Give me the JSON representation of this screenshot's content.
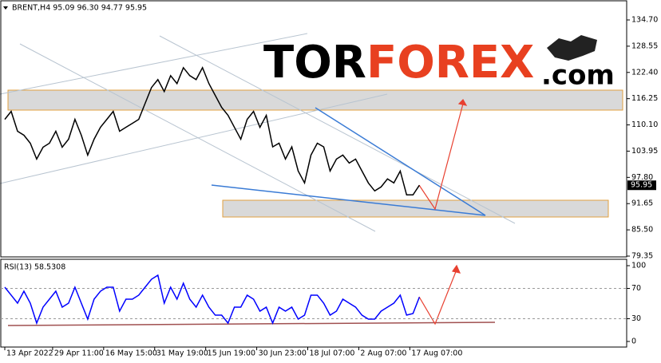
{
  "chart_data": [
    {
      "type": "line",
      "title": "BRENT,H4  95.09 96.30 94.77 95.95",
      "logo": {
        "part1": "TOR",
        "part2": "FOREX",
        "part3": ".com"
      },
      "series": [
        {
          "name": "BRENT",
          "color": "#000000",
          "values": [
            111.4,
            113.27,
            108.61,
            107.68,
            105.81,
            102.09,
            104.88,
            105.81,
            108.61,
            104.88,
            106.75,
            111.4,
            107.68,
            103.02,
            106.75,
            109.54,
            111.4,
            113.27,
            108.61,
            109.54,
            110.47,
            111.4,
            115.13,
            118.86,
            120.72,
            117.93,
            121.65,
            119.79,
            123.52,
            121.65,
            120.72,
            123.52,
            119.79,
            117.0,
            114.2,
            112.34,
            109.54,
            106.75,
            111.4,
            113.27,
            109.54,
            112.34,
            104.95,
            105.81,
            102.09,
            104.95,
            99.29,
            96.5,
            103.02,
            105.81,
            104.95,
            99.29,
            102.09,
            103.02,
            101.16,
            102.09,
            99.29,
            96.5,
            94.63,
            95.57,
            97.44,
            96.5,
            99.29,
            93.7,
            93.7,
            95.95
          ]
        }
      ],
      "current_price": 95.95,
      "xlim": [
        -0.625,
        97.5
      ],
      "ylim": [
        79.35,
        134.7
      ],
      "yticks": [
        {
          "value": 134.7,
          "label": "134.70"
        },
        128.55,
        {
          "value": 122.4,
          "label": "122.40"
        },
        116.25,
        {
          "value": 110.1,
          "label": "110.10"
        },
        103.95,
        {
          "value": 97.8,
          "label": "97.80"
        },
        91.65,
        {
          "value": 85.5,
          "label": "85.50"
        },
        79.35
      ]
    },
    {
      "type": "line",
      "title": "RSI(13) 58.5308",
      "series": [
        {
          "name": "RSI(13)",
          "color": "#0000ff",
          "values": [
            71.6,
            61.1,
            50.5,
            66.3,
            50.5,
            24.2,
            45.3,
            55.8,
            66.3,
            45.3,
            50.5,
            71.6,
            50.5,
            29.5,
            55.8,
            66.3,
            71.6,
            71.6,
            40.0,
            55.8,
            55.8,
            61.1,
            71.6,
            82.1,
            87.4,
            50.5,
            71.6,
            55.8,
            76.8,
            55.8,
            45.3,
            61.1,
            45.3,
            34.7,
            34.7,
            24.2,
            45.3,
            45.3,
            61.1,
            55.8,
            40.0,
            45.3,
            24.2,
            45.3,
            40.0,
            45.3,
            29.5,
            34.7,
            61.1,
            61.1,
            50.5,
            34.7,
            40.0,
            55.8,
            50.5,
            45.3,
            34.7,
            29.5,
            29.5,
            40.0,
            45.3,
            50.5,
            61.1,
            34.7,
            36.8,
            58.53
          ]
        }
      ],
      "xlim": [
        -0.625,
        97.5
      ],
      "ylim": [
        0,
        100
      ],
      "yticks": [
        0,
        30,
        70,
        100
      ],
      "xticks": [
        {
          "value": 0,
          "label": "13 Apr 2022"
        },
        {
          "value": 7.5,
          "label": "29 Apr 11:00"
        },
        {
          "value": 15.5,
          "label": "16 May 15:00"
        },
        {
          "value": 23.5,
          "label": "31 May 19:00"
        },
        {
          "value": 31.5,
          "label": "15 Jun 19:00"
        },
        {
          "value": 39.5,
          "label": "30 Jun 23:00"
        },
        {
          "value": 47.5,
          "label": "18 Jul 07:00"
        },
        {
          "value": 55.5,
          "label": "2 Aug 07:00"
        },
        {
          "value": 63.5,
          "label": "17 Aug 07:00"
        }
      ]
    }
  ]
}
